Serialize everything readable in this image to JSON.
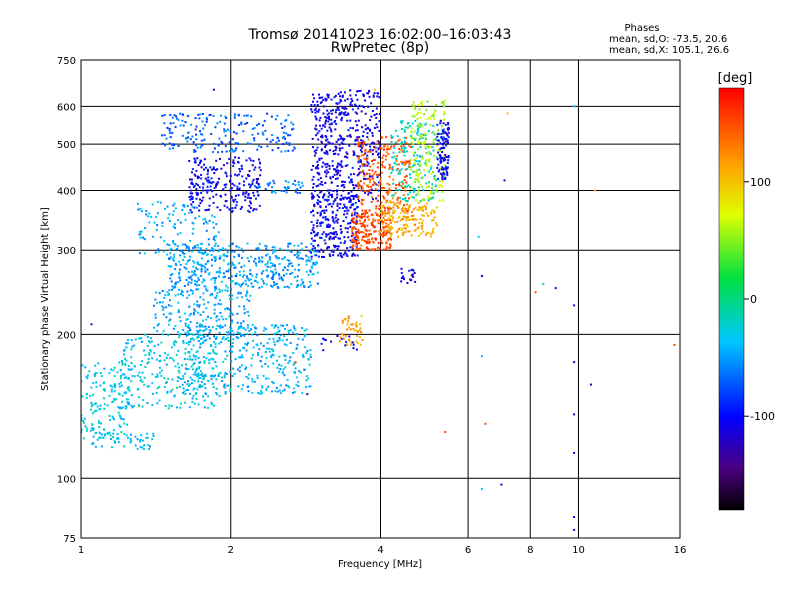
{
  "chart_data": {
    "type": "scatter",
    "title": "Tromsø 20141023 16:02:00–16:03:43",
    "subtitle": "RwPretec (8p)",
    "xlabel": "Frequency [MHz]",
    "ylabel": "Stationary phase Virtual Height [km]",
    "xscale": "log",
    "yscale": "log",
    "xlim": [
      1,
      16
    ],
    "ylim": [
      75,
      750
    ],
    "x_ticks": [
      1,
      2,
      4,
      6,
      8,
      10,
      16
    ],
    "x_tick_labels": [
      "1",
      "2",
      "4",
      "6",
      "8",
      "10",
      "16"
    ],
    "y_ticks": [
      75,
      100,
      200,
      300,
      400,
      500,
      600,
      750
    ],
    "y_tick_labels": [
      "75",
      "100",
      "200",
      "300",
      "400",
      "500",
      "600",
      "750"
    ],
    "x_grid": [
      1,
      2,
      4,
      6,
      8,
      10,
      16
    ],
    "y_grid": [
      75,
      100,
      200,
      300,
      400,
      500,
      600,
      750
    ],
    "grid": true,
    "phase_info": {
      "heading": "Phases",
      "line_o": "mean, sd,O: -73.5, 20.6",
      "line_x": "mean, sd,X: 105.1, 26.6"
    },
    "colorbar": {
      "label": "[deg]",
      "range": [
        -180,
        180
      ],
      "ticks": [
        100,
        0,
        -100
      ],
      "tick_labels": [
        "100",
        "0",
        "-100"
      ],
      "colormap": "rainbow"
    },
    "clusters": [
      {
        "x": [
          1.0,
          1.25
        ],
        "y": [
          120,
          175
        ],
        "phase": -30,
        "count": 160
      },
      {
        "x": [
          1.05,
          1.4
        ],
        "y": [
          115,
          125
        ],
        "phase": -35,
        "count": 50
      },
      {
        "x": [
          1.2,
          1.9
        ],
        "y": [
          140,
          200
        ],
        "phase": -30,
        "count": 260
      },
      {
        "x": [
          1.6,
          2.9
        ],
        "y": [
          150,
          210
        ],
        "phase": -40,
        "count": 360
      },
      {
        "x": [
          1.4,
          2.2
        ],
        "y": [
          195,
          250
        ],
        "phase": -45,
        "count": 220
      },
      {
        "x": [
          1.5,
          3.0
        ],
        "y": [
          250,
          310
        ],
        "phase": -50,
        "count": 420
      },
      {
        "x": [
          1.3,
          1.9
        ],
        "y": [
          290,
          380
        ],
        "phase": -45,
        "count": 120
      },
      {
        "x": [
          1.65,
          2.3
        ],
        "y": [
          360,
          470
        ],
        "phase": -105,
        "count": 240
      },
      {
        "x": [
          1.45,
          2.7
        ],
        "y": [
          480,
          580
        ],
        "phase": -70,
        "count": 200
      },
      {
        "x": [
          2.2,
          2.8
        ],
        "y": [
          395,
          420
        ],
        "phase": -60,
        "count": 40
      },
      {
        "x": [
          2.9,
          4.0
        ],
        "y": [
          380,
          650
        ],
        "phase": -108,
        "count": 480
      },
      {
        "x": [
          2.9,
          3.6
        ],
        "y": [
          290,
          390
        ],
        "phase": -105,
        "count": 240
      },
      {
        "x": [
          3.5,
          4.2
        ],
        "y": [
          300,
          360
        ],
        "phase": 150,
        "count": 200
      },
      {
        "x": [
          3.6,
          4.6
        ],
        "y": [
          360,
          520
        ],
        "phase": 145,
        "count": 220
      },
      {
        "x": [
          4.0,
          5.2
        ],
        "y": [
          320,
          380
        ],
        "phase": 110,
        "count": 160
      },
      {
        "x": [
          4.2,
          5.2
        ],
        "y": [
          380,
          560
        ],
        "phase": -20,
        "count": 160
      },
      {
        "x": [
          4.6,
          5.4
        ],
        "y": [
          380,
          620
        ],
        "phase": 60,
        "count": 160
      },
      {
        "x": [
          5.2,
          5.5
        ],
        "y": [
          420,
          560
        ],
        "phase": -100,
        "count": 100
      },
      {
        "x": [
          3.3,
          3.7
        ],
        "y": [
          190,
          220
        ],
        "phase": 115,
        "count": 45
      },
      {
        "x": [
          4.4,
          4.7
        ],
        "y": [
          255,
          275
        ],
        "phase": -105,
        "count": 20
      },
      {
        "x": [
          3.0,
          3.6
        ],
        "y": [
          185,
          200
        ],
        "phase": -108,
        "count": 15
      }
    ],
    "points": [
      {
        "x": 1.05,
        "y": 210,
        "phase": -110
      },
      {
        "x": 6.3,
        "y": 320,
        "phase": -30
      },
      {
        "x": 6.4,
        "y": 265,
        "phase": -110
      },
      {
        "x": 6.4,
        "y": 180,
        "phase": -40
      },
      {
        "x": 6.5,
        "y": 130,
        "phase": 150
      },
      {
        "x": 6.4,
        "y": 95,
        "phase": -30
      },
      {
        "x": 7.0,
        "y": 97,
        "phase": -110
      },
      {
        "x": 7.1,
        "y": 420,
        "phase": -110
      },
      {
        "x": 8.2,
        "y": 245,
        "phase": 150
      },
      {
        "x": 8.5,
        "y": 255,
        "phase": -20
      },
      {
        "x": 9.0,
        "y": 250,
        "phase": -110
      },
      {
        "x": 9.8,
        "y": 230,
        "phase": -110
      },
      {
        "x": 9.8,
        "y": 175,
        "phase": -110
      },
      {
        "x": 9.8,
        "y": 136,
        "phase": -110
      },
      {
        "x": 9.8,
        "y": 113,
        "phase": -110
      },
      {
        "x": 9.8,
        "y": 83,
        "phase": -110
      },
      {
        "x": 9.8,
        "y": 78,
        "phase": -110
      },
      {
        "x": 9.8,
        "y": 600,
        "phase": -30
      },
      {
        "x": 10.6,
        "y": 157,
        "phase": -110
      },
      {
        "x": 10.8,
        "y": 400,
        "phase": 100
      },
      {
        "x": 5.4,
        "y": 125,
        "phase": 150
      },
      {
        "x": 7.2,
        "y": 580,
        "phase": 100
      },
      {
        "x": 15.6,
        "y": 190,
        "phase": 150
      },
      {
        "x": 1.85,
        "y": 650,
        "phase": -100
      },
      {
        "x": 3.9,
        "y": 650,
        "phase": 100
      },
      {
        "x": 2.7,
        "y": 175,
        "phase": 150
      },
      {
        "x": 2.85,
        "y": 150,
        "phase": -110
      }
    ]
  }
}
